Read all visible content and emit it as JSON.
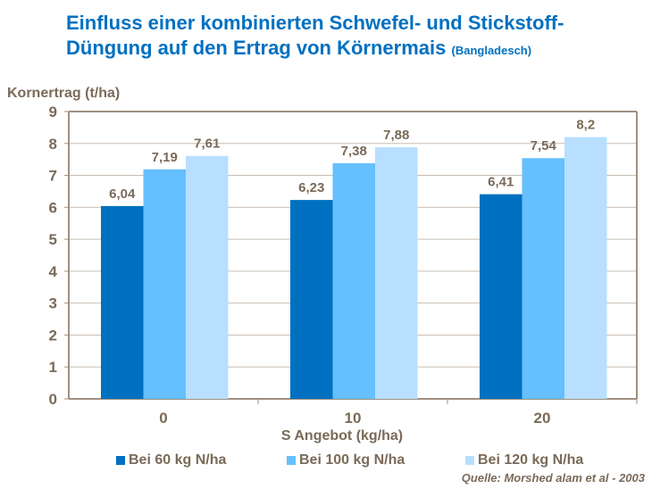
{
  "chart_data": {
    "type": "bar",
    "title": "Einfluss einer kombinierten Schwefel- und Stickstoff-Düngung auf den Ertrag von Körnermais",
    "subtitle": "(Bangladesch)",
    "ylabel": "Kornertrag (t/ha)",
    "xlabel": "S Angebot (kg/ha)",
    "categories": [
      "0",
      "10",
      "20"
    ],
    "ylim": [
      0,
      9
    ],
    "yticks": [
      "0",
      "1",
      "2",
      "3",
      "4",
      "5",
      "6",
      "7",
      "8",
      "9"
    ],
    "grid": true,
    "legend_position": "bottom",
    "series": [
      {
        "name": "Bei 60 kg N/ha",
        "values": [
          6.04,
          6.23,
          6.41
        ],
        "labels": [
          "6,04",
          "6,23",
          "6,41"
        ],
        "color": "#0070c0"
      },
      {
        "name": "Bei 100 kg N/ha",
        "values": [
          7.19,
          7.38,
          7.54
        ],
        "labels": [
          "7,19",
          "7,38",
          "7,54"
        ],
        "color": "#66bfff"
      },
      {
        "name": "Bei 120 kg N/ha",
        "values": [
          7.61,
          7.88,
          8.2
        ],
        "labels": [
          "7,61",
          "7,88",
          "8,2"
        ],
        "color": "#b8dfff"
      }
    ],
    "source": "Quelle:  Morshed alam et al - 2003"
  }
}
